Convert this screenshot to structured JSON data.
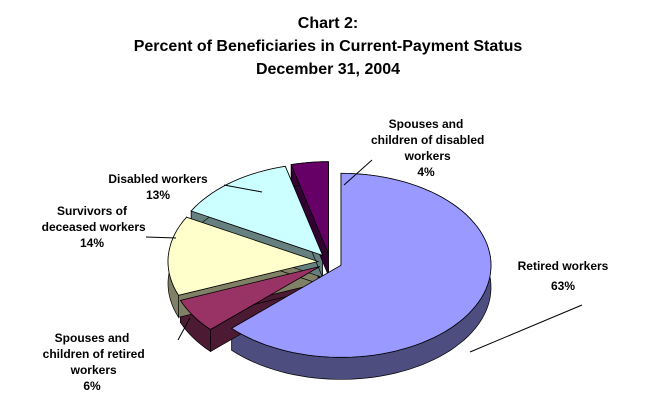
{
  "chart_data": {
    "type": "pie3d",
    "title": [
      "Chart 2:",
      "Percent of Beneficiaries in Current-Payment Status",
      "December 31, 2004"
    ],
    "categories": [
      "Retired workers",
      "Spouses and children of retired workers",
      "Survivors of deceased workers",
      "Disabled workers",
      "Spouses and children of disabled workers"
    ],
    "values": [
      63,
      6,
      14,
      13,
      4
    ],
    "value_labels": [
      "63%",
      "6%",
      "14%",
      "13%",
      "4%"
    ],
    "colors": [
      "#9999ff",
      "#993366",
      "#ffffcc",
      "#ccffff",
      "#660066"
    ]
  }
}
